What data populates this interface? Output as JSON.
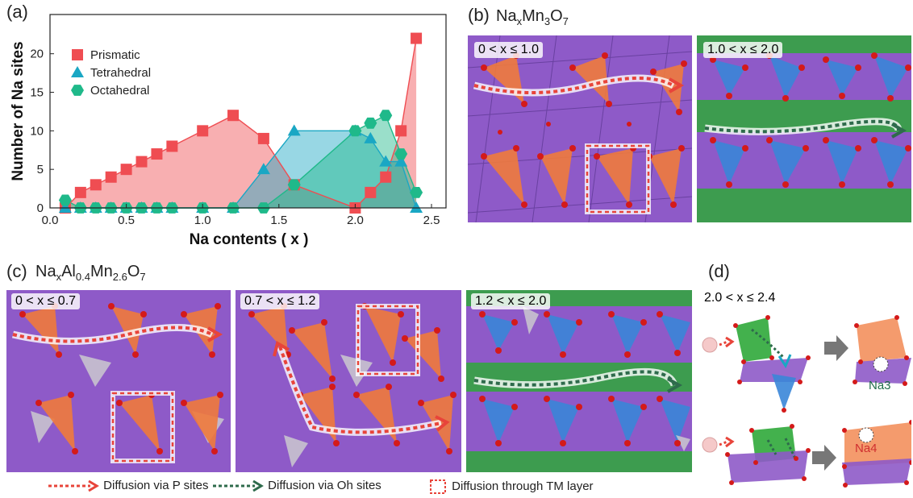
{
  "panel_labels": {
    "a": "(a)",
    "b": "(b)",
    "c": "(c)",
    "d": "(d)"
  },
  "titles": {
    "b": {
      "pre": "Na",
      "sub1": "x",
      "mid": "Mn",
      "sub2": "3",
      "post": "O",
      "sub3": "7"
    },
    "c": {
      "pre": "Na",
      "sub1": "x",
      "mid1": "Al",
      "sub2": "0.4",
      "mid2": "Mn",
      "sub3": "2.6",
      "post": "O",
      "sub4": "7"
    }
  },
  "ranges": {
    "b1": "0 < x ≤ 1.0",
    "b2": "1.0 < x ≤ 2.0",
    "c1": "0 < x ≤ 0.7",
    "c2": "0.7 < x ≤ 1.2",
    "c3": "1.2 < x ≤ 2.0",
    "d": "2.0 < x ≤ 2.4"
  },
  "site_labels": {
    "na3": "Na3",
    "na4": "Na4"
  },
  "bottom_legend": {
    "p": "Diffusion via P sites",
    "oh": "Diffusion via Oh sites",
    "tm": "Diffusion through TM layer"
  },
  "colors": {
    "prismatic": "#ef4d52",
    "tetrahedral": "#1aa7c4",
    "octahedral": "#1fb98a",
    "manganese": "#8e5ac8",
    "oxygen": "#d41a1a",
    "p_arrow": "#e8443a",
    "oh_arrow": "#2e6b4c"
  },
  "chart_data": {
    "type": "area",
    "xlabel": "Na contents ( x )",
    "ylabel": "Number of Na sites",
    "xlim": [
      0,
      2.5
    ],
    "ylim": [
      0,
      23
    ],
    "xticks": [
      "0.0",
      "0.5",
      "1.0",
      "1.5",
      "2.0",
      "2.5"
    ],
    "yticks": [
      "0",
      "5",
      "10",
      "15",
      "20"
    ],
    "legend_position": "top-left",
    "series": [
      {
        "name": "Prismatic",
        "marker": "square",
        "x": [
          0.1,
          0.2,
          0.3,
          0.4,
          0.5,
          0.6,
          0.7,
          0.8,
          1.0,
          1.2,
          1.4,
          1.6,
          2.0,
          2.1,
          2.2,
          2.3,
          2.4
        ],
        "y": [
          0,
          2,
          3,
          4,
          5,
          6,
          7,
          8,
          10,
          12,
          9,
          3,
          0,
          2,
          4,
          10,
          22
        ]
      },
      {
        "name": "Tetrahedral",
        "marker": "triangle",
        "x": [
          0.1,
          0.2,
          0.3,
          0.4,
          0.5,
          0.6,
          0.7,
          0.8,
          1.0,
          1.2,
          1.4,
          1.6,
          2.0,
          2.1,
          2.2,
          2.3,
          2.4
        ],
        "y": [
          0,
          0,
          0,
          0,
          0,
          0,
          0,
          0,
          0,
          0,
          5,
          10,
          10,
          9,
          6,
          6,
          0
        ]
      },
      {
        "name": "Octahedral",
        "marker": "hexagon",
        "x": [
          0.1,
          0.2,
          0.3,
          0.4,
          0.5,
          0.6,
          0.7,
          0.8,
          1.0,
          1.2,
          1.4,
          1.6,
          2.0,
          2.1,
          2.2,
          2.3,
          2.4
        ],
        "y": [
          1,
          0,
          0,
          0,
          0,
          0,
          0,
          0,
          0,
          0,
          0,
          3,
          10,
          11,
          12,
          7,
          2
        ]
      }
    ]
  }
}
